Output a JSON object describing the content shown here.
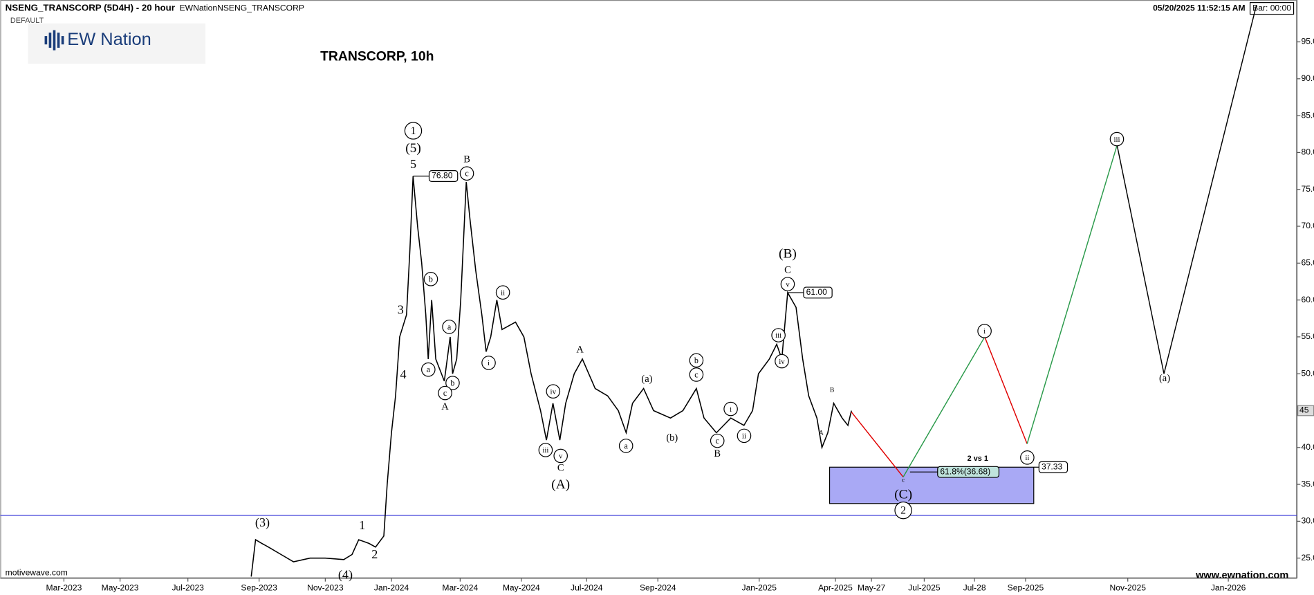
{
  "header": {
    "symbol": "NSENG_TRANSCORP (5D4H) - 20 hour",
    "source": "EWNationNSENG_TRANSCORP",
    "preset": "DEFAULT",
    "timestamp": "05/20/2025 11:52:15 AM",
    "bar_timer": "Bar: 00:00",
    "logo": "EW Nation"
  },
  "footer": {
    "left": "motivewave.com",
    "right": "www.ewnation.com"
  },
  "chart_data": {
    "type": "line",
    "title": "TRANSCORP, 10h",
    "xlim": [
      -0.27,
      37.37
    ],
    "xticks": [
      {
        "value": 2,
        "label": "Mar-2023"
      },
      {
        "value": 4,
        "label": "May-2023"
      },
      {
        "value": 6,
        "label": "Jul-2023"
      },
      {
        "value": 8,
        "label": "Sep-2023"
      },
      {
        "value": 10,
        "label": "Nov-2023"
      },
      {
        "value": 12,
        "label": "Jan-2024"
      },
      {
        "value": 14,
        "label": "Mar-2024"
      },
      {
        "value": 16,
        "label": "May-2024"
      },
      {
        "value": 18,
        "label": "Jul-2024"
      },
      {
        "value": 20,
        "label": "Sep-2024"
      },
      {
        "value": 24,
        "label": "Jan-2025"
      },
      {
        "value": 27,
        "label": "Apr-2025"
      },
      {
        "value": 28.87,
        "label": "May-27"
      },
      {
        "value": 30,
        "label": "Jul-2025"
      },
      {
        "value": 30.9,
        "label": "Jul-28"
      },
      {
        "value": 32,
        "label": "Sep-2025"
      },
      {
        "value": 34,
        "label": "Nov-2025"
      },
      {
        "value": 36,
        "label": "Jan-2026"
      }
    ],
    "ylim": [
      22.27,
      100.68
    ],
    "yticks": [
      {
        "value": 25,
        "label": "25.0"
      },
      {
        "value": 30,
        "label": "30.0"
      },
      {
        "value": 35,
        "label": "35.0"
      },
      {
        "value": 40,
        "label": "40.0"
      },
      {
        "value": 45,
        "label": "45.0"
      },
      {
        "value": 50,
        "label": "50.0"
      },
      {
        "value": 55,
        "label": "55.0"
      },
      {
        "value": 60,
        "label": "60.0"
      },
      {
        "value": 65,
        "label": "65.0"
      },
      {
        "value": 70,
        "label": "70.0"
      },
      {
        "value": 75,
        "label": "75.0"
      },
      {
        "value": 80,
        "label": "80.0"
      },
      {
        "value": 85,
        "label": "85.0"
      },
      {
        "value": 90,
        "label": "90.0"
      },
      {
        "value": 95,
        "label": "95.0"
      }
    ],
    "series": [
      {
        "color": "#000000",
        "x": [
          7.78,
          7.9,
          8.08,
          8.28,
          8.66,
          9.04,
          9.54,
          10,
          10.56,
          10.81,
          11.01,
          11.32,
          11.52,
          11.77,
          11.87,
          12,
          12.12,
          12.24,
          12.44,
          12.54,
          12.63,
          12.76,
          12.88,
          13.0,
          13.07,
          13.17,
          13.29,
          13.54,
          13.71,
          13.78,
          13.9,
          14.02,
          14.2,
          14.32,
          14.51,
          14.71,
          14.85,
          15.0,
          15.2,
          15.37,
          15.81,
          16.08,
          16.3,
          16.59,
          16.77,
          16.97,
          17.18,
          17.36,
          17.62,
          17.87,
          18.24,
          18.59,
          18.89,
          19.11,
          19.29,
          19.6,
          19.88,
          20.5,
          20.99,
          21.52,
          21.82,
          22.31,
          22.88,
          23.4,
          23.74,
          23.97,
          24.4,
          24.69,
          24.89,
          25.12,
          25.45,
          25.71,
          25.95,
          26.27,
          26.47,
          26.7,
          26.93,
          27.35,
          27.65,
          27.83
        ],
        "values": [
          22.5,
          27.5,
          27,
          26.5,
          25.5,
          24.5,
          25,
          25,
          24.8,
          25.5,
          27.5,
          27,
          26.5,
          28,
          35,
          42,
          47,
          55,
          58,
          67,
          76.8,
          70,
          65,
          58,
          52,
          60,
          52,
          49,
          55,
          50,
          52,
          60,
          76,
          71,
          64,
          58,
          53,
          55,
          60,
          56,
          57,
          55,
          50,
          45,
          41,
          46,
          41,
          46,
          50,
          52,
          48,
          47,
          45,
          42,
          46,
          48,
          45,
          44,
          45,
          48,
          44,
          42,
          44,
          43,
          45,
          50,
          52,
          54,
          52,
          61,
          59,
          52,
          47,
          44,
          40,
          42,
          46,
          44,
          43,
          45
        ]
      },
      {
        "color": "#e00000",
        "x": [
          27.83,
          29.55
        ],
        "values": [
          44.8,
          36
        ]
      },
      {
        "color": "#2a9a4a",
        "x": [
          29.55,
          31.12
        ],
        "values": [
          36,
          55
        ]
      },
      {
        "color": "#e00000",
        "x": [
          31.12,
          32.03
        ],
        "values": [
          55,
          40.5
        ]
      },
      {
        "color": "#2a9a4a",
        "x": [
          32.03,
          33.79
        ],
        "values": [
          40.5,
          81
        ]
      },
      {
        "color": "#000000",
        "x": [
          33.79,
          34.72,
          36.56
        ],
        "values": [
          81,
          50,
          100
        ]
      }
    ],
    "hline": 30.8,
    "target_zone": {
      "color": "#a9a9f5",
      "xlim": [
        26.77,
        32.16
      ],
      "ylim": [
        32.4,
        37.33
      ],
      "label": "2 vs 1"
    },
    "price_tags": [
      {
        "value": 76.8,
        "label": "76.80"
      },
      {
        "value": 61,
        "label": "61.00"
      },
      {
        "value": 37.33,
        "label": "37.33"
      },
      {
        "value": 36.68,
        "label": "61.8%(36.68)"
      }
    ],
    "last_price": 45,
    "wave_labels": [
      "1",
      "(5)",
      "5",
      "B",
      "c",
      "b",
      "3",
      "a",
      "4",
      "a",
      "b",
      "c",
      "A",
      "ii",
      "i",
      "iv",
      "iii",
      "v",
      "C",
      "(A)",
      "A",
      "(a)",
      "a",
      "(b)",
      "b",
      "c",
      "c",
      "B",
      "i",
      "ii",
      "(B)",
      "C",
      "v",
      "iii",
      "iv",
      "B",
      "A",
      "c",
      "(C)",
      "2",
      "i",
      "ii",
      "iii",
      "(a)",
      "(3)",
      "1",
      "2",
      "(4)"
    ]
  }
}
